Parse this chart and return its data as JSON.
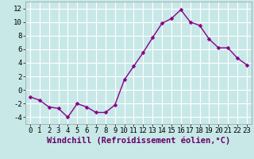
{
  "x": [
    0,
    1,
    2,
    3,
    4,
    5,
    6,
    7,
    8,
    9,
    10,
    11,
    12,
    13,
    14,
    15,
    16,
    17,
    18,
    19,
    20,
    21,
    22,
    23
  ],
  "y": [
    -1.0,
    -1.5,
    -2.5,
    -2.7,
    -4.0,
    -2.0,
    -2.5,
    -3.3,
    -3.3,
    -2.2,
    1.5,
    3.5,
    5.5,
    7.7,
    9.8,
    10.5,
    11.8,
    10.0,
    9.5,
    7.5,
    6.2,
    6.2,
    4.7,
    3.7
  ],
  "line_color": "#880088",
  "marker_color": "#880088",
  "bg_color": "#c8e8e8",
  "grid_color": "#aacccc",
  "xlabel": "Windchill (Refroidissement éolien,°C)",
  "xlim": [
    -0.5,
    23.5
  ],
  "ylim": [
    -5,
    13
  ],
  "yticks": [
    -4,
    -2,
    0,
    2,
    4,
    6,
    8,
    10,
    12
  ],
  "xticks": [
    0,
    1,
    2,
    3,
    4,
    5,
    6,
    7,
    8,
    9,
    10,
    11,
    12,
    13,
    14,
    15,
    16,
    17,
    18,
    19,
    20,
    21,
    22,
    23
  ],
  "xlabel_fontsize": 7.5,
  "tick_fontsize": 6.5,
  "line_width": 1.0,
  "marker_size": 2.5
}
